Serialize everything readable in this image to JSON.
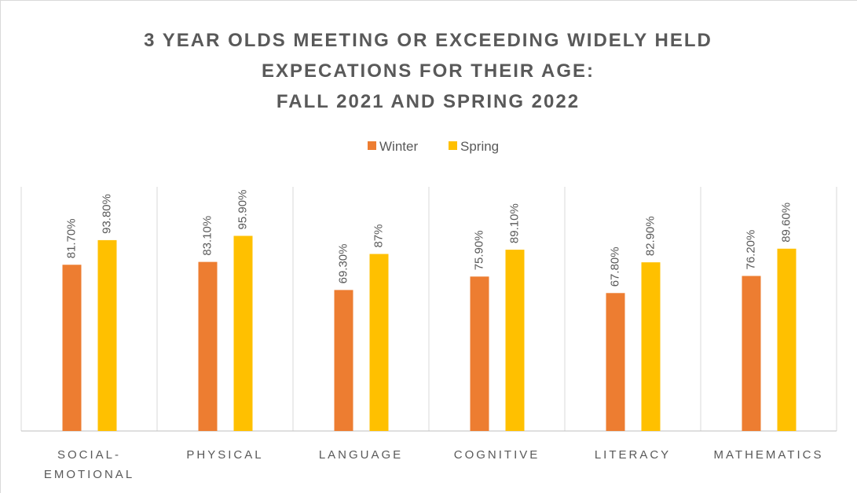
{
  "chart_data": {
    "type": "bar",
    "title": [
      "3 YEAR OLDS MEETING OR EXCEEDING WIDELY HELD",
      "EXPECATIONS FOR THEIR AGE:",
      "FALL 2021 AND SPRING 2022"
    ],
    "categories": [
      "SOCIAL-EMOTIONAL",
      "PHYSICAL",
      "LANGUAGE",
      "COGNITIVE",
      "LITERACY",
      "MATHEMATICS"
    ],
    "series": [
      {
        "name": "Winter",
        "color": "#ED7D31",
        "values": [
          81.7,
          83.1,
          69.3,
          75.9,
          67.8,
          76.2
        ],
        "value_labels": [
          "81.70%",
          "83.10%",
          "69.30%",
          "75.90%",
          "67.80%",
          "76.20%"
        ]
      },
      {
        "name": "Spring",
        "color": "#FFC000",
        "values": [
          93.8,
          95.9,
          87,
          89.1,
          82.9,
          89.6
        ],
        "value_labels": [
          "93.80%",
          "95.90%",
          "87%",
          "89.10%",
          "82.90%",
          "89.60%"
        ]
      }
    ],
    "ylim": [
      0,
      120
    ]
  }
}
